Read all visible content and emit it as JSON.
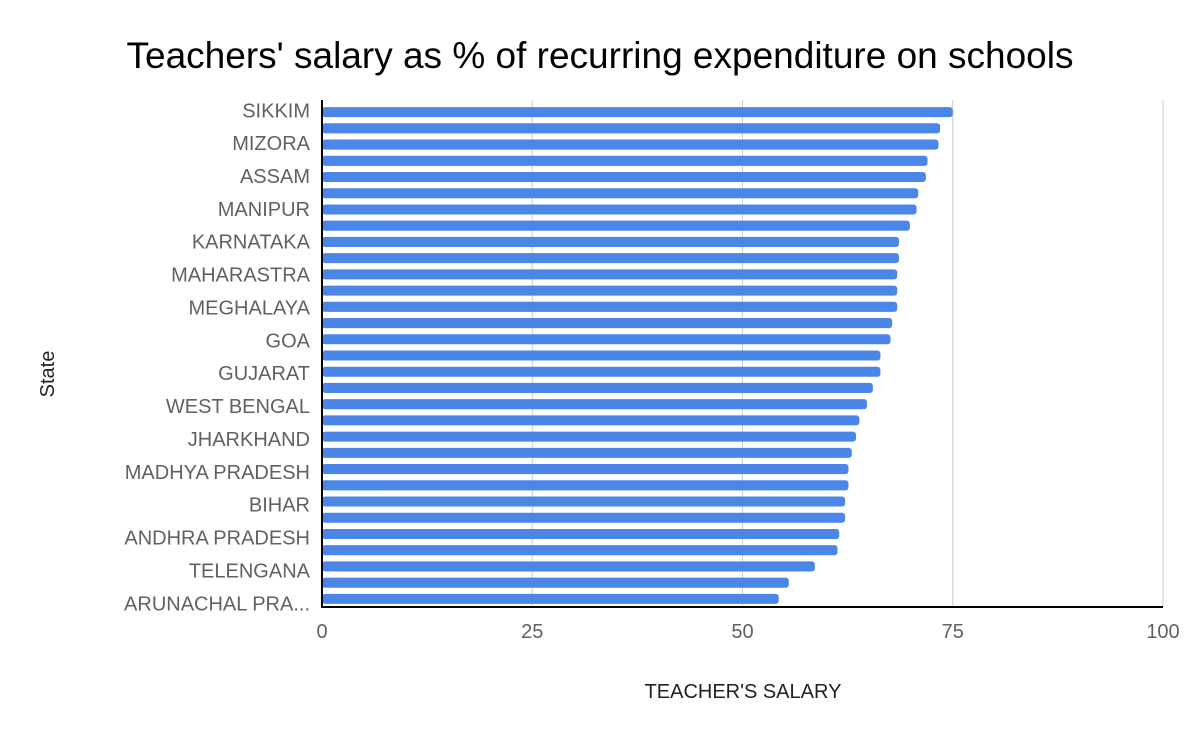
{
  "chart_data": {
    "type": "bar",
    "orientation": "horizontal",
    "title": "Teachers' salary as % of recurring expenditure on schools",
    "xlabel": "TEACHER'S SALARY",
    "ylabel": "State",
    "xlim": [
      0,
      100
    ],
    "x_ticks": [
      "0",
      "25",
      "50",
      "75",
      "100"
    ],
    "grid": true,
    "legend": "none",
    "bar_color": "#4a86e8",
    "category_labels": [
      "SIKKIM",
      "MIZORA",
      "ASSAM",
      "MANIPUR",
      "KARNATAKA",
      "MAHARASTRA",
      "MEGHALAYA",
      "GOA",
      "GUJARAT",
      "WEST BENGAL",
      "JHARKHAND",
      "MADHYA PRADESH",
      "BIHAR",
      "ANDHRA PRADESH",
      "TELENGANA",
      "ARUNACHAL PRA..."
    ],
    "values": [
      75.0,
      73.5,
      73.3,
      72.0,
      71.8,
      70.9,
      70.7,
      69.9,
      68.6,
      68.6,
      68.4,
      68.4,
      68.4,
      67.8,
      67.6,
      66.4,
      66.4,
      65.5,
      64.8,
      63.9,
      63.5,
      63.0,
      62.6,
      62.6,
      62.2,
      62.2,
      61.5,
      61.3,
      58.6,
      55.5,
      54.3
    ]
  }
}
